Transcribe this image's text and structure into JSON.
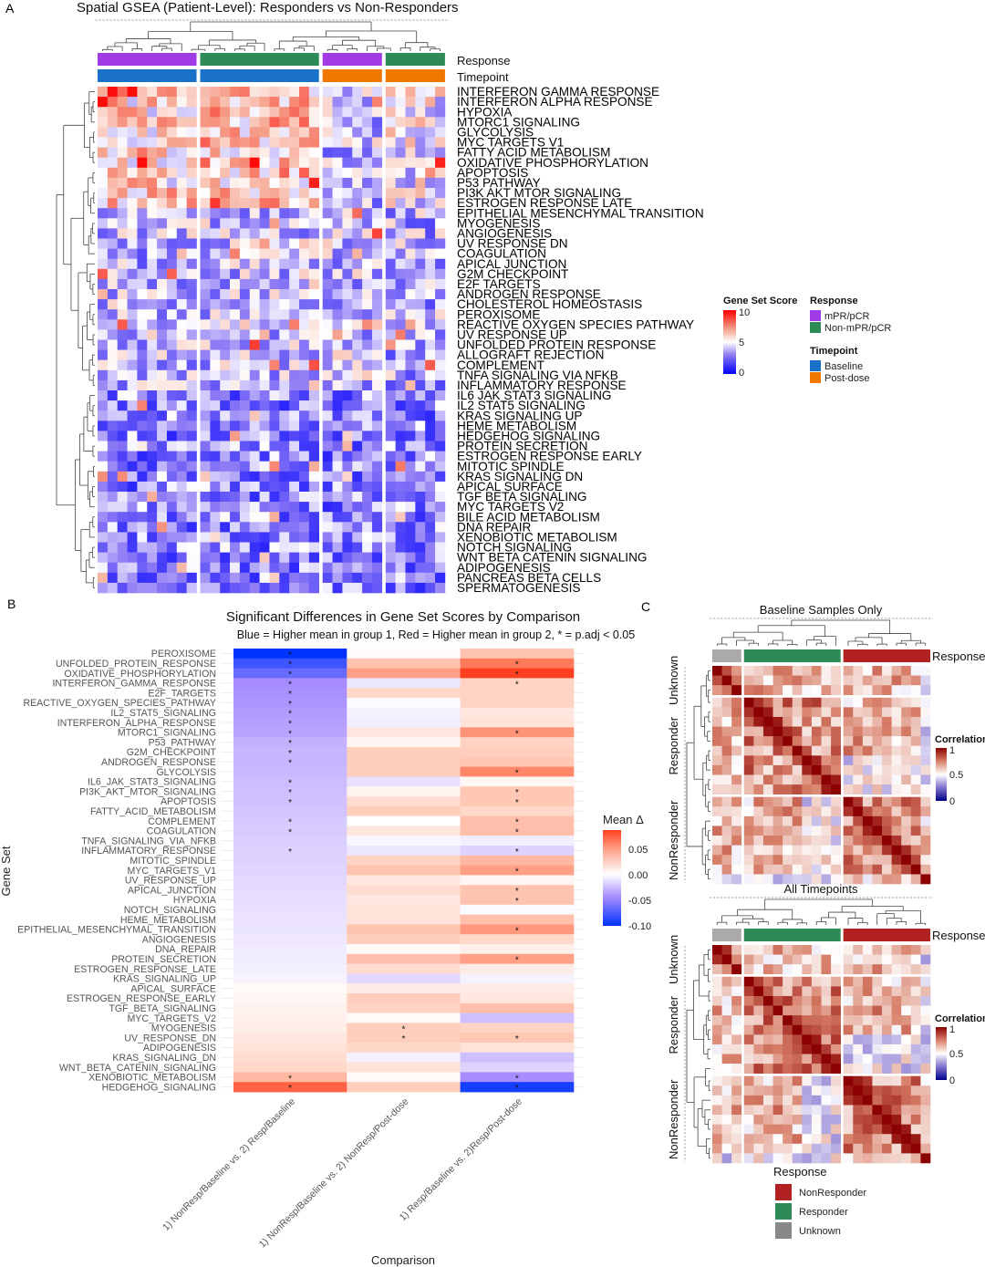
{
  "panelA": {
    "letter": "A",
    "title": "Spatial GSEA (Patient-Level): Responders vs Non-Responders",
    "annotation_labels": {
      "response": "Response",
      "timepoint": "Timepoint"
    },
    "column_groups": [
      {
        "response": "mPR/pCR",
        "timepoint": "Baseline",
        "n": 10
      },
      {
        "response": "Non-mPR/pCR",
        "timepoint": "Baseline",
        "n": 12
      },
      {
        "response": "mPR/pCR",
        "timepoint": "Post-dose",
        "n": 6
      },
      {
        "response": "Non-mPR/pCR",
        "timepoint": "Post-dose",
        "n": 6
      }
    ],
    "rows": [
      "INTERFERON GAMMA RESPONSE",
      "INTERFERON ALPHA RESPONSE",
      "HYPOXIA",
      "MTORC1 SIGNALING",
      "GLYCOLYSIS",
      "MYC TARGETS V1",
      "FATTY ACID METABOLISM",
      "OXIDATIVE PHOSPHORYLATION",
      "APOPTOSIS",
      "P53 PATHWAY",
      "PI3K AKT MTOR SIGNALING",
      "ESTROGEN RESPONSE LATE",
      "EPITHELIAL MESENCHYMAL TRANSITION",
      "MYOGENESIS",
      "ANGIOGENESIS",
      "UV RESPONSE DN",
      "COAGULATION",
      "APICAL JUNCTION",
      "G2M CHECKPOINT",
      "E2F TARGETS",
      "ANDROGEN RESPONSE",
      "CHOLESTEROL HOMEOSTASIS",
      "PEROXISOME",
      "REACTIVE OXYGEN SPECIES PATHWAY",
      "UV RESPONSE UP",
      "UNFOLDED PROTEIN RESPONSE",
      "ALLOGRAFT REJECTION",
      "COMPLEMENT",
      "TNFA SIGNALING VIA NFKB",
      "INFLAMMATORY RESPONSE",
      "IL6 JAK STAT3 SIGNALING",
      "IL2 STAT5 SIGNALING",
      "KRAS SIGNALING UP",
      "HEME METABOLISM",
      "HEDGEHOG SIGNALING",
      "PROTEIN SECRETION",
      "ESTROGEN RESPONSE EARLY",
      "MITOTIC SPINDLE",
      "KRAS SIGNALING DN",
      "APICAL SURFACE",
      "TGF BETA SIGNALING",
      "MYC TARGETS V2",
      "BILE ACID METABOLISM",
      "DNA REPAIR",
      "XENOBIOTIC METABOLISM",
      "NOTCH SIGNALING",
      "WNT BETA CATENIN SIGNALING",
      "ADIPOGENESIS",
      "PANCREAS BETA CELLS",
      "SPERMATOGENESIS"
    ],
    "score_legend": {
      "title": "Gene Set Score",
      "ticks": [
        "10",
        "5",
        "0"
      ],
      "range": [
        0,
        10
      ]
    },
    "response_legend": {
      "title": "Response",
      "items": [
        {
          "label": "mPR/pCR",
          "color": "#a03be6"
        },
        {
          "label": "Non-mPR/pCR",
          "color": "#2e8b57"
        }
      ]
    },
    "timepoint_legend": {
      "title": "Timepoint",
      "items": [
        {
          "label": "Baseline",
          "color": "#1a72c8"
        },
        {
          "label": "Post-dose",
          "color": "#f07800"
        }
      ]
    }
  },
  "chart_data": [
    {
      "type": "heatmap",
      "panel": "B",
      "letter": "B",
      "title": "Significant Differences in Gene Set Scores by Comparison",
      "subtitle": "Blue = Higher mean in group 1, Red = Higher mean in group 2, * = p.adj < 0.05",
      "xlabel": "Comparison",
      "ylabel": "Gene Set",
      "categories": [
        "1) NonResp/Baseline vs. 2) Resp/Baseline",
        "1) NonResp/Baseline vs. 2) NonResp/Post-dose",
        "1) Resp/Baseline vs. 2)Resp/Post-dose"
      ],
      "legend": {
        "title": "Mean Δ",
        "ticks": [
          "0.05",
          "0.00",
          "-0.05",
          "-0.10"
        ],
        "range": [
          -0.1,
          0.085
        ]
      },
      "rows": [
        {
          "label": "PEROXISOME",
          "values": [
            -0.1,
            0.002,
            0.03
          ],
          "sig": [
            1,
            0,
            0
          ]
        },
        {
          "label": "UNFOLDED_PROTEIN_RESPONSE",
          "values": [
            -0.085,
            0.03,
            0.06
          ],
          "sig": [
            1,
            0,
            1
          ]
        },
        {
          "label": "OXIDATIVE_PHOSPHORYLATION",
          "values": [
            -0.075,
            0.045,
            0.085
          ],
          "sig": [
            1,
            0,
            1
          ]
        },
        {
          "label": "INTERFERON_GAMMA_RESPONSE",
          "values": [
            -0.06,
            -0.015,
            0.022
          ],
          "sig": [
            1,
            0,
            1
          ]
        },
        {
          "label": "E2F_TARGETS",
          "values": [
            -0.058,
            0.02,
            0.022
          ],
          "sig": [
            1,
            0,
            0
          ]
        },
        {
          "label": "REACTIVE_OXYGEN_SPECIES_PATHWAY",
          "values": [
            -0.056,
            -0.003,
            0.022
          ],
          "sig": [
            1,
            0,
            0
          ]
        },
        {
          "label": "IL2_STAT5_SIGNALING",
          "values": [
            -0.052,
            -0.008,
            0.012
          ],
          "sig": [
            1,
            0,
            0
          ]
        },
        {
          "label": "INTERFERON_ALPHA_RESPONSE",
          "values": [
            -0.05,
            -0.01,
            0.015
          ],
          "sig": [
            1,
            0,
            0
          ]
        },
        {
          "label": "MTORC1_SIGNALING",
          "values": [
            -0.048,
            0.012,
            0.05
          ],
          "sig": [
            1,
            0,
            1
          ]
        },
        {
          "label": "P53_PATHWAY",
          "values": [
            -0.042,
            0.005,
            0.022
          ],
          "sig": [
            1,
            0,
            0
          ]
        },
        {
          "label": "G2M_CHECKPOINT",
          "values": [
            -0.04,
            0.025,
            0.025
          ],
          "sig": [
            1,
            0,
            0
          ]
        },
        {
          "label": "ANDROGEN_RESPONSE",
          "values": [
            -0.04,
            0.025,
            0.028
          ],
          "sig": [
            1,
            0,
            0
          ]
        },
        {
          "label": "GLYCOLYSIS",
          "values": [
            -0.038,
            0.025,
            0.055
          ],
          "sig": [
            0,
            0,
            1
          ]
        },
        {
          "label": "IL6_JAK_STAT3_SIGNALING",
          "values": [
            -0.037,
            -0.018,
            0.004
          ],
          "sig": [
            1,
            0,
            0
          ]
        },
        {
          "label": "PI3K_AKT_MTOR_SIGNALING",
          "values": [
            -0.035,
            0.006,
            0.028
          ],
          "sig": [
            1,
            0,
            1
          ]
        },
        {
          "label": "APOPTOSIS",
          "values": [
            -0.034,
            0.018,
            0.028
          ],
          "sig": [
            1,
            0,
            1
          ]
        },
        {
          "label": "FATTY_ACID_METABOLISM",
          "values": [
            -0.032,
            0.025,
            0.02
          ],
          "sig": [
            0,
            0,
            0
          ]
        },
        {
          "label": "COMPLEMENT",
          "values": [
            -0.03,
            0.0,
            0.032
          ],
          "sig": [
            1,
            0,
            1
          ]
        },
        {
          "label": "COAGULATION",
          "values": [
            -0.029,
            0.012,
            0.032
          ],
          "sig": [
            1,
            0,
            1
          ]
        },
        {
          "label": "TNFA_SIGNALING_VIA_NFKB",
          "values": [
            -0.027,
            -0.005,
            -0.01
          ],
          "sig": [
            0,
            0,
            0
          ]
        },
        {
          "label": "INFLAMMATORY_RESPONSE",
          "values": [
            -0.026,
            -0.015,
            -0.025
          ],
          "sig": [
            1,
            0,
            1
          ]
        },
        {
          "label": "MITOTIC_SPINDLE",
          "values": [
            -0.025,
            0.022,
            0.035
          ],
          "sig": [
            0,
            0,
            0
          ]
        },
        {
          "label": "MYC_TARGETS_V1",
          "values": [
            -0.024,
            0.03,
            0.045
          ],
          "sig": [
            0,
            0,
            1
          ]
        },
        {
          "label": "UV_RESPONSE_UP",
          "values": [
            -0.022,
            0.012,
            0.005
          ],
          "sig": [
            0,
            0,
            0
          ]
        },
        {
          "label": "APICAL_JUNCTION",
          "values": [
            -0.021,
            0.018,
            0.03
          ],
          "sig": [
            0,
            0,
            1
          ]
        },
        {
          "label": "HYPOXIA",
          "values": [
            -0.02,
            0.012,
            0.03
          ],
          "sig": [
            0,
            0,
            1
          ]
        },
        {
          "label": "NOTCH_SIGNALING",
          "values": [
            -0.018,
            0.014,
            -0.003
          ],
          "sig": [
            0,
            0,
            0
          ]
        },
        {
          "label": "HEME_METABOLISM",
          "values": [
            -0.017,
            0.014,
            0.032
          ],
          "sig": [
            0,
            0,
            0
          ]
        },
        {
          "label": "EPITHELIAL_MESENCHYMAL_TRANSITION",
          "values": [
            -0.016,
            0.03,
            0.048
          ],
          "sig": [
            0,
            0,
            1
          ]
        },
        {
          "label": "ANGIOGENESIS",
          "values": [
            -0.014,
            0.025,
            0.02
          ],
          "sig": [
            0,
            0,
            0
          ]
        },
        {
          "label": "DNA_REPAIR",
          "values": [
            -0.012,
            0.003,
            0.008
          ],
          "sig": [
            0,
            0,
            0
          ]
        },
        {
          "label": "PROTEIN_SECRETION",
          "values": [
            -0.011,
            0.032,
            0.045
          ],
          "sig": [
            0,
            0,
            1
          ]
        },
        {
          "label": "ESTROGEN_RESPONSE_LATE",
          "values": [
            -0.009,
            0.018,
            0.01
          ],
          "sig": [
            0,
            0,
            0
          ]
        },
        {
          "label": "KRAS_SIGNALING_UP",
          "values": [
            -0.007,
            -0.022,
            -0.008
          ],
          "sig": [
            0,
            0,
            0
          ]
        },
        {
          "label": "APICAL_SURFACE",
          "values": [
            0.003,
            0.01,
            0.01
          ],
          "sig": [
            0,
            0,
            0
          ]
        },
        {
          "label": "ESTROGEN_RESPONSE_EARLY",
          "values": [
            0.005,
            0.025,
            0.012
          ],
          "sig": [
            0,
            0,
            0
          ]
        },
        {
          "label": "TGF_BETA_SIGNALING",
          "values": [
            0.006,
            0.022,
            0.032
          ],
          "sig": [
            0,
            0,
            0
          ]
        },
        {
          "label": "MYC_TARGETS_V2",
          "values": [
            0.007,
            0.003,
            -0.035
          ],
          "sig": [
            0,
            0,
            0
          ]
        },
        {
          "label": "MYOGENESIS",
          "values": [
            0.009,
            0.025,
            0.022
          ],
          "sig": [
            0,
            1,
            0
          ]
        },
        {
          "label": "UV_RESPONSE_DN",
          "values": [
            0.012,
            0.025,
            0.028
          ],
          "sig": [
            0,
            1,
            1
          ]
        },
        {
          "label": "ADIPOGENESIS",
          "values": [
            0.015,
            0.02,
            0.015
          ],
          "sig": [
            0,
            0,
            0
          ]
        },
        {
          "label": "KRAS_SIGNALING_DN",
          "values": [
            0.017,
            -0.008,
            -0.035
          ],
          "sig": [
            0,
            0,
            0
          ]
        },
        {
          "label": "WNT_BETA_CATENIN_SIGNALING",
          "values": [
            0.02,
            0.015,
            -0.025
          ],
          "sig": [
            0,
            0,
            0
          ]
        },
        {
          "label": "XENOBIOTIC_METABOLISM",
          "values": [
            0.035,
            0.003,
            -0.06
          ],
          "sig": [
            1,
            0,
            1
          ]
        },
        {
          "label": "HEDGEHOG_SIGNALING",
          "values": [
            0.07,
            0.025,
            -0.095
          ],
          "sig": [
            1,
            0,
            1
          ]
        }
      ]
    },
    {
      "type": "heatmap",
      "panel": "C",
      "letter": "C",
      "plots": [
        {
          "title": "Baseline Samples Only",
          "groups": [
            {
              "label": "Unknown",
              "n": 3
            },
            {
              "label": "Responder",
              "n": 10
            },
            {
              "label": "NonResponder",
              "n": 9
            }
          ]
        },
        {
          "title": "All Timepoints",
          "groups": [
            {
              "label": "Unknown",
              "n": 3
            },
            {
              "label": "Responder",
              "n": 10
            },
            {
              "label": "NonResponder",
              "n": 9
            }
          ]
        }
      ],
      "annotation_label": "Response",
      "legend": {
        "title": "Correlation",
        "ticks": [
          "1",
          "0.5",
          "0"
        ],
        "range": [
          0,
          1
        ]
      },
      "response_legend": {
        "title": "Response",
        "items": [
          {
            "label": "NonResponder",
            "color": "#b22222"
          },
          {
            "label": "Responder",
            "color": "#2e8b57"
          },
          {
            "label": "Unknown",
            "color": "#aaaaaa"
          }
        ]
      }
    }
  ]
}
